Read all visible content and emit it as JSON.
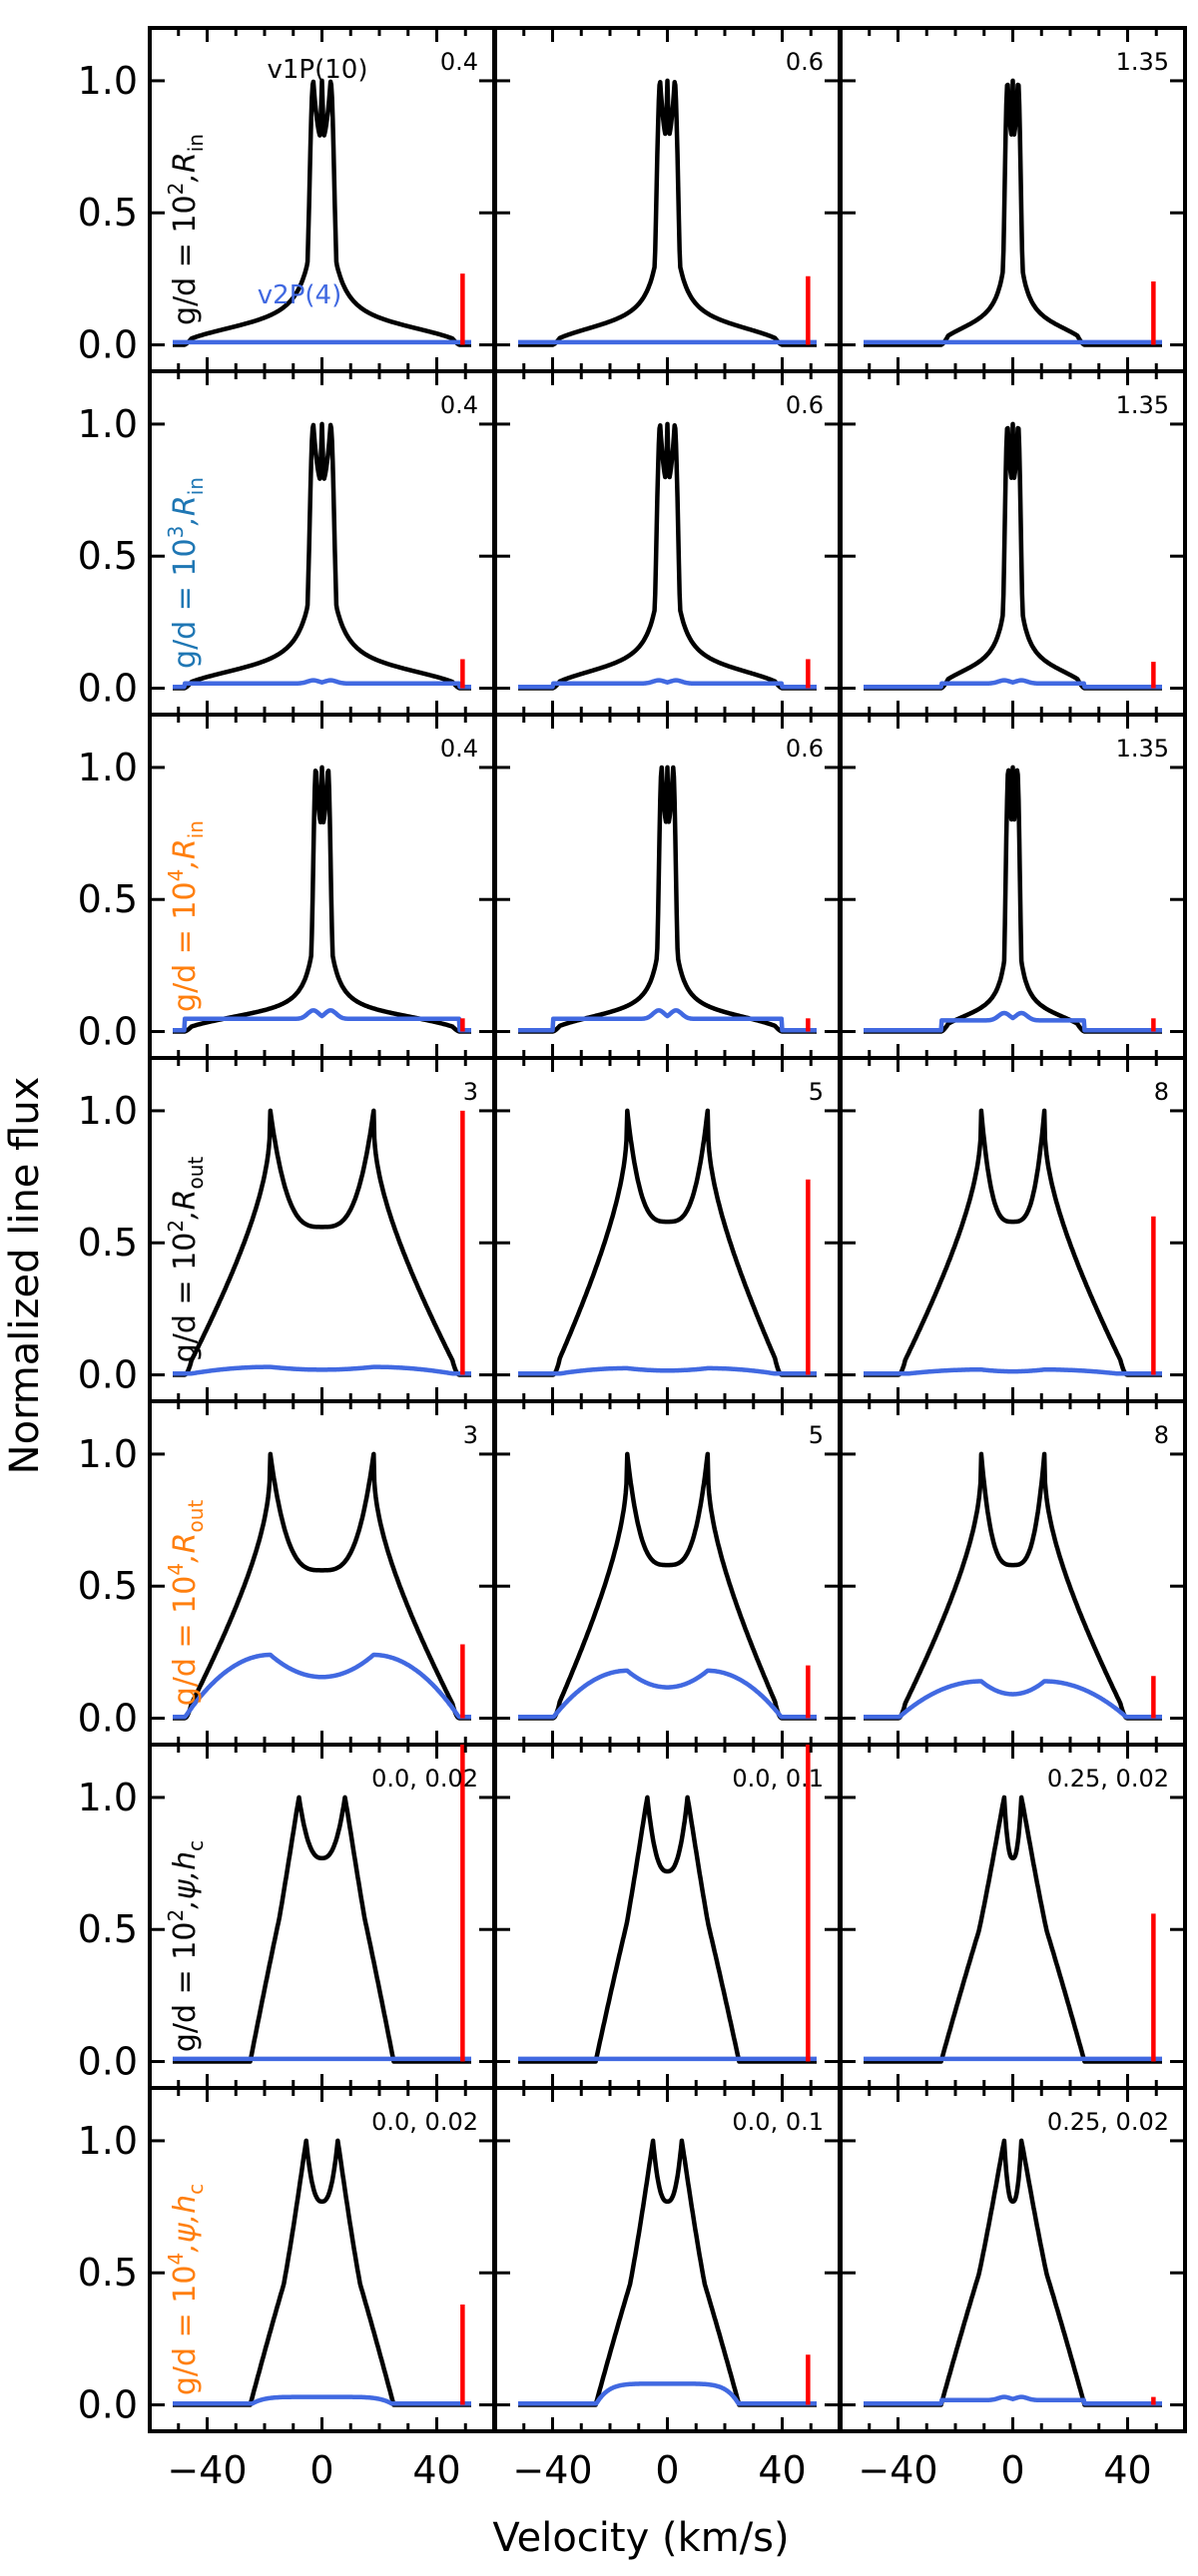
{
  "figure": {
    "ylabel": "Normalized line flux",
    "xlabel": "Velocity (km/s)",
    "xlim": [
      -60,
      60
    ],
    "ylim": [
      -0.1,
      1.2
    ],
    "xticks": [
      -40,
      0,
      40
    ],
    "yticks": [
      0.0,
      0.5,
      1.0
    ],
    "ytick_labels": [
      "0.0",
      "0.5",
      "1.0"
    ],
    "colors": {
      "line_v1": "#000000",
      "line_v2": "#4169e1",
      "marker": "#ff0000",
      "black": "#000000",
      "blue": "#1f77b4",
      "orange": "#ff7f0e"
    }
  },
  "series_legend": {
    "black_line": "v1P(10)",
    "blue_line": "v2P(4)"
  },
  "chart_data": {
    "type": "line",
    "grid": false,
    "layout": "7 rows x 3 columns",
    "title": "",
    "xlabel": "Velocity (km/s)",
    "ylabel": "Normalized line flux",
    "xlim": [
      -60,
      60
    ],
    "ylim": [
      -0.1,
      1.2
    ],
    "rows": [
      {
        "row_label": "g/d = 10², R_in",
        "row_label_main": "g/d = 10",
        "row_label_sup": "2",
        "row_label_param": "R",
        "row_label_sub": "in",
        "label_color": "#000000",
        "panels": [
          {
            "label": "0.4",
            "shape": "inner",
            "edge": 48,
            "core": 5.5,
            "peak_width": 2.6,
            "wing": 0.1,
            "v2": {
              "profile": "flat",
              "level": 0.01
            },
            "marker": {
              "x": 49,
              "height": 0.27
            }
          },
          {
            "label": "0.6",
            "shape": "inner",
            "edge": 40,
            "core": 4.6,
            "peak_width": 2.4,
            "wing": 0.1,
            "v2": {
              "profile": "flat",
              "level": 0.01
            },
            "marker": {
              "x": 49,
              "height": 0.26
            }
          },
          {
            "label": "1.35",
            "shape": "inner",
            "edge": 25,
            "core": 3.3,
            "peak_width": 2.0,
            "wing": 0.1,
            "v2": {
              "profile": "flat",
              "level": 0.01
            },
            "marker": {
              "x": 49,
              "height": 0.24
            }
          }
        ]
      },
      {
        "row_label": "g/d = 10³, R_in",
        "row_label_main": "g/d = 10",
        "row_label_sup": "3",
        "row_label_param": "R",
        "row_label_sub": "in",
        "label_color": "#1f77b4",
        "panels": [
          {
            "label": "0.4",
            "shape": "inner",
            "edge": 48,
            "core": 5.5,
            "peak_width": 2.6,
            "wing": 0.1,
            "v2": {
              "profile": "central",
              "level": 0.03
            },
            "marker": {
              "x": 49,
              "height": 0.11
            }
          },
          {
            "label": "0.6",
            "shape": "inner",
            "edge": 40,
            "core": 4.6,
            "peak_width": 2.4,
            "wing": 0.1,
            "v2": {
              "profile": "central",
              "level": 0.03
            },
            "marker": {
              "x": 49,
              "height": 0.11
            }
          },
          {
            "label": "1.35",
            "shape": "inner",
            "edge": 25,
            "core": 3.3,
            "peak_width": 2.0,
            "wing": 0.1,
            "v2": {
              "profile": "central",
              "level": 0.03
            },
            "marker": {
              "x": 49,
              "height": 0.1
            }
          }
        ]
      },
      {
        "row_label": "g/d = 10⁴, R_in",
        "row_label_main": "g/d = 10",
        "row_label_sup": "4",
        "row_label_param": "R",
        "row_label_sub": "in",
        "label_color": "#ff7f0e",
        "panels": [
          {
            "label": "0.4",
            "shape": "inner",
            "edge": 48,
            "core": 3.8,
            "peak_width": 2.0,
            "wing": 0.09,
            "v2": {
              "profile": "central",
              "level": 0.08
            },
            "marker": {
              "x": 49,
              "height": 0.05
            }
          },
          {
            "label": "0.6",
            "shape": "inner",
            "edge": 40,
            "core": 3.6,
            "peak_width": 2.0,
            "wing": 0.09,
            "v2": {
              "profile": "central",
              "level": 0.08
            },
            "marker": {
              "x": 49,
              "height": 0.05
            }
          },
          {
            "label": "1.35",
            "shape": "inner",
            "edge": 25,
            "core": 2.8,
            "peak_width": 1.8,
            "wing": 0.09,
            "v2": {
              "profile": "central",
              "level": 0.07
            },
            "marker": {
              "x": 49,
              "height": 0.05
            }
          }
        ]
      },
      {
        "row_label": "g/d = 10², R_out",
        "row_label_main": "g/d = 10",
        "row_label_sup": "2",
        "row_label_param": "R",
        "row_label_sub": "out",
        "label_color": "#000000",
        "panels": [
          {
            "label": "3",
            "shape": "outer",
            "edge": 48,
            "peak": 18,
            "dip": 0.56,
            "v2": {
              "profile": "outer",
              "level": 0.03
            },
            "marker": {
              "x": 49,
              "height": 1.0
            }
          },
          {
            "label": "5",
            "shape": "outer",
            "edge": 40,
            "peak": 14,
            "dip": 0.58,
            "v2": {
              "profile": "outer",
              "level": 0.025
            },
            "marker": {
              "x": 49,
              "height": 0.74
            }
          },
          {
            "label": "8",
            "shape": "outer",
            "edge": 40,
            "peak": 11,
            "dip": 0.58,
            "v2": {
              "profile": "outer",
              "level": 0.02
            },
            "marker": {
              "x": 49,
              "height": 0.6
            }
          }
        ]
      },
      {
        "row_label": "g/d = 10⁴, R_out",
        "row_label_main": "g/d = 10",
        "row_label_sup": "4",
        "row_label_param": "R",
        "row_label_sub": "out",
        "label_color": "#ff7f0e",
        "panels": [
          {
            "label": "3",
            "shape": "outer",
            "edge": 48,
            "peak": 18,
            "dip": 0.56,
            "v2": {
              "profile": "outer",
              "level": 0.24
            },
            "marker": {
              "x": 49,
              "height": 0.28
            }
          },
          {
            "label": "5",
            "shape": "outer",
            "edge": 40,
            "peak": 14,
            "dip": 0.58,
            "v2": {
              "profile": "outer",
              "level": 0.18
            },
            "marker": {
              "x": 49,
              "height": 0.2
            }
          },
          {
            "label": "8",
            "shape": "outer",
            "edge": 40,
            "peak": 11,
            "dip": 0.58,
            "v2": {
              "profile": "outer",
              "level": 0.14
            },
            "marker": {
              "x": 49,
              "height": 0.16
            }
          }
        ]
      },
      {
        "row_label": "g/d = 10², ψ, h_c",
        "row_label_main": "g/d = 10",
        "row_label_sup": "2",
        "row_label_param": ",ψ,h",
        "row_label_sub": "c",
        "label_color": "#000000",
        "panels": [
          {
            "label": "0.0, 0.02",
            "shape": "psi",
            "edge": 25,
            "peak": 8,
            "dip": 0.77,
            "wing": 0.86,
            "v2": {
              "profile": "flat",
              "level": 0.01
            },
            "marker": {
              "x": 49,
              "height": 1.2
            }
          },
          {
            "label": "0.0, 0.1",
            "shape": "psi",
            "edge": 25,
            "peak": 7,
            "dip": 0.72,
            "wing": 0.82,
            "v2": {
              "profile": "flat",
              "level": 0.01
            },
            "marker": {
              "x": 49,
              "height": 1.2
            }
          },
          {
            "label": "0.25, 0.02",
            "shape": "psi",
            "edge": 25,
            "peak": 3,
            "dip": 0.77,
            "wing": 0.78,
            "v2": {
              "profile": "flat",
              "level": 0.01
            },
            "marker": {
              "x": 49,
              "height": 0.56
            }
          }
        ]
      },
      {
        "row_label": "g/d = 10⁴, ψ, h_c",
        "row_label_main": "g/d = 10",
        "row_label_sup": "4",
        "row_label_param": ",ψ,h",
        "row_label_sub": "c",
        "label_color": "#ff7f0e",
        "panels": [
          {
            "label": "0.0, 0.02",
            "shape": "psi",
            "edge": 25,
            "peak": 5.5,
            "dip": 0.77,
            "wing": 0.72,
            "v2": {
              "profile": "psi",
              "level": 0.03
            },
            "marker": {
              "x": 49,
              "height": 0.38
            }
          },
          {
            "label": "0.0, 0.1",
            "shape": "psi",
            "edge": 25,
            "peak": 5,
            "dip": 0.77,
            "wing": 0.72,
            "v2": {
              "profile": "psi",
              "level": 0.08
            },
            "marker": {
              "x": 49,
              "height": 0.19
            }
          },
          {
            "label": "0.25, 0.02",
            "shape": "psi",
            "edge": 25,
            "peak": 3,
            "dip": 0.77,
            "wing": 0.78,
            "v2": {
              "profile": "central",
              "level": 0.03
            },
            "marker": {
              "x": 49,
              "height": 0.03
            }
          }
        ]
      }
    ]
  }
}
